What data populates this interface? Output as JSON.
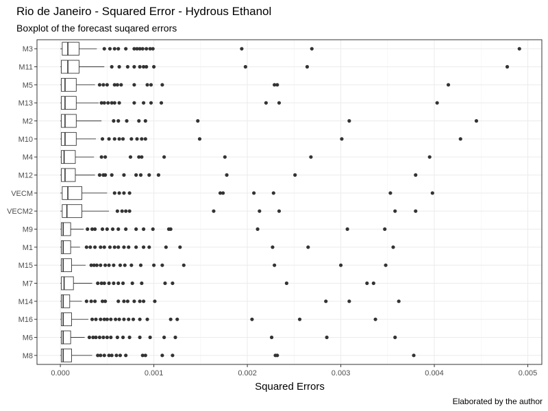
{
  "chart_data": {
    "type": "boxplot",
    "title": "Rio de Janeiro - Squared Error - Hydrous Ethanol",
    "subtitle": "Boxplot of the forecast suqared errors",
    "xlabel": "Squared Errors",
    "ylabel": "",
    "caption": "Elaborated by the author",
    "xlim": [
      -0.00025,
      0.00515
    ],
    "xticks": [
      0,
      0.001,
      0.002,
      0.003,
      0.004,
      0.005
    ],
    "xtick_labels": [
      "0.000",
      "0.001",
      "0.002",
      "0.003",
      "0.004",
      "0.005"
    ],
    "grid": true,
    "categories": [
      "M3",
      "M11",
      "M5",
      "M13",
      "M2",
      "M10",
      "M4",
      "M12",
      "VECM",
      "VECM2",
      "M9",
      "M1",
      "M15",
      "M7",
      "M14",
      "M16",
      "M6",
      "M8"
    ],
    "boxes": [
      {
        "name": "M3",
        "whisker_low": 0.0,
        "q1": 2e-05,
        "median": 8e-05,
        "q3": 0.0002,
        "whisker_high": 0.00039,
        "outliers": [
          0.00047,
          0.00053,
          0.00058,
          0.00062,
          0.0007,
          0.00079,
          0.00082,
          0.00085,
          0.00088,
          0.00092,
          0.00096,
          0.00099,
          0.00194,
          0.00269,
          0.00491
        ]
      },
      {
        "name": "M11",
        "whisker_low": 0.0,
        "q1": 1e-05,
        "median": 8e-05,
        "q3": 0.0002,
        "whisker_high": 0.00047,
        "outliers": [
          0.00055,
          0.00063,
          0.00072,
          0.00079,
          0.00085,
          0.00089,
          0.00092,
          0.001,
          0.00198,
          0.00264,
          0.00478
        ]
      },
      {
        "name": "M5",
        "whisker_low": 0.0,
        "q1": 1e-05,
        "median": 5e-05,
        "q3": 0.00017,
        "whisker_high": 0.00037,
        "outliers": [
          0.00042,
          0.00046,
          0.0005,
          0.00058,
          0.00061,
          0.00065,
          0.00079,
          0.00093,
          0.00097,
          0.00109,
          0.00229,
          0.00232,
          0.00415
        ]
      },
      {
        "name": "M13",
        "whisker_low": 0.0,
        "q1": 1e-05,
        "median": 5e-05,
        "q3": 0.00017,
        "whisker_high": 0.00041,
        "outliers": [
          0.00044,
          0.00047,
          0.00051,
          0.00055,
          0.00058,
          0.00063,
          0.00079,
          0.00089,
          0.00097,
          0.00108,
          0.0022,
          0.00234,
          0.00403
        ]
      },
      {
        "name": "M2",
        "whisker_low": 0.0,
        "q1": 1e-05,
        "median": 5e-05,
        "q3": 0.00017,
        "whisker_high": 0.00044,
        "outliers": [
          0.00057,
          0.00062,
          0.00071,
          0.00084,
          0.00091,
          0.00147,
          0.00309,
          0.00445
        ]
      },
      {
        "name": "M10",
        "whisker_low": 0.0,
        "q1": 1e-05,
        "median": 5e-05,
        "q3": 0.00017,
        "whisker_high": 0.00038,
        "outliers": [
          0.00045,
          0.00052,
          0.00058,
          0.00063,
          0.00067,
          0.00076,
          0.00082,
          0.00087,
          0.00091,
          0.00149,
          0.00301,
          0.00428
        ]
      },
      {
        "name": "M4",
        "whisker_low": 0.0,
        "q1": 1e-05,
        "median": 4e-05,
        "q3": 0.00016,
        "whisker_high": 0.00036,
        "outliers": [
          0.00044,
          0.00048,
          0.00075,
          0.00084,
          0.00087,
          0.00111,
          0.00176,
          0.00268,
          0.00395
        ]
      },
      {
        "name": "M12",
        "whisker_low": 0.0,
        "q1": 1e-05,
        "median": 5e-05,
        "q3": 0.00016,
        "whisker_high": 0.00037,
        "outliers": [
          0.00042,
          0.00046,
          0.00048,
          0.00055,
          0.00068,
          0.00081,
          0.00086,
          0.00095,
          0.00105,
          0.00178,
          0.00251,
          0.0038
        ]
      },
      {
        "name": "VECM",
        "whisker_low": 0.0,
        "q1": 2e-05,
        "median": 8e-05,
        "q3": 0.00023,
        "whisker_high": 0.0005,
        "outliers": [
          0.00058,
          0.00063,
          0.00068,
          0.00074,
          0.00171,
          0.00174,
          0.00207,
          0.00228,
          0.00353,
          0.00398
        ]
      },
      {
        "name": "VECM2",
        "whisker_low": 0.0,
        "q1": 2e-05,
        "median": 7e-05,
        "q3": 0.00023,
        "whisker_high": 0.00052,
        "outliers": [
          0.00061,
          0.00066,
          0.0007,
          0.00074,
          0.00164,
          0.00213,
          0.00234,
          0.00358,
          0.0038
        ]
      },
      {
        "name": "M9",
        "whisker_low": 0.0,
        "q1": 1e-05,
        "median": 3e-05,
        "q3": 0.00011,
        "whisker_high": 0.00025,
        "outliers": [
          0.00029,
          0.00034,
          0.00037,
          0.00045,
          0.0005,
          0.00056,
          0.00062,
          0.0007,
          0.00081,
          0.00089,
          0.00099,
          0.00116,
          0.00118,
          0.00211,
          0.00307,
          0.00347
        ]
      },
      {
        "name": "M1",
        "whisker_low": 0.0,
        "q1": 1e-05,
        "median": 3e-05,
        "q3": 0.00011,
        "whisker_high": 0.00021,
        "outliers": [
          0.00028,
          0.00032,
          0.00037,
          0.00043,
          0.00047,
          0.00053,
          0.00058,
          0.00062,
          0.00068,
          0.00073,
          0.00081,
          0.00089,
          0.00095,
          0.00113,
          0.00128,
          0.00227,
          0.00265,
          0.00356
        ]
      },
      {
        "name": "M15",
        "whisker_low": 0.0,
        "q1": 1e-05,
        "median": 3e-05,
        "q3": 0.00012,
        "whisker_high": 0.00027,
        "outliers": [
          0.00033,
          0.00036,
          0.00039,
          0.00043,
          0.00048,
          0.00052,
          0.00057,
          0.00064,
          0.00069,
          0.00076,
          0.00086,
          0.001,
          0.00109,
          0.00132,
          0.00229,
          0.003,
          0.00348
        ]
      },
      {
        "name": "M7",
        "whisker_low": 0.0,
        "q1": 1e-05,
        "median": 4e-05,
        "q3": 0.00014,
        "whisker_high": 0.00034,
        "outliers": [
          0.0004,
          0.00044,
          0.00047,
          0.00052,
          0.00057,
          0.00062,
          0.00067,
          0.00077,
          0.00087,
          0.00112,
          0.0012,
          0.00242,
          0.00328,
          0.00335
        ]
      },
      {
        "name": "M14",
        "whisker_low": 0.0,
        "q1": 1e-05,
        "median": 3e-05,
        "q3": 0.0001,
        "whisker_high": 0.00023,
        "outliers": [
          0.00028,
          0.00033,
          0.00037,
          0.00045,
          0.00048,
          0.00062,
          0.00068,
          0.00072,
          0.00079,
          0.00085,
          0.00089,
          0.00101,
          0.00284,
          0.00309,
          0.00362
        ]
      },
      {
        "name": "M16",
        "whisker_low": 0.0,
        "q1": 1e-05,
        "median": 3e-05,
        "q3": 0.00012,
        "whisker_high": 0.0003,
        "outliers": [
          0.00034,
          0.00038,
          0.00043,
          0.00047,
          0.0005,
          0.00054,
          0.00059,
          0.00063,
          0.00068,
          0.00073,
          0.00078,
          0.00085,
          0.00093,
          0.00118,
          0.00125,
          0.00205,
          0.00256,
          0.00337
        ]
      },
      {
        "name": "M6",
        "whisker_low": 0.0,
        "q1": 1e-05,
        "median": 3e-05,
        "q3": 0.00011,
        "whisker_high": 0.00026,
        "outliers": [
          0.00031,
          0.00035,
          0.00038,
          0.00042,
          0.00046,
          0.0005,
          0.00054,
          0.00061,
          0.00067,
          0.00074,
          0.00085,
          0.00096,
          0.00111,
          0.00123,
          0.00226,
          0.00285,
          0.00358
        ]
      },
      {
        "name": "M8",
        "whisker_low": 0.0,
        "q1": 1e-05,
        "median": 3e-05,
        "q3": 0.00012,
        "whisker_high": 0.00034,
        "outliers": [
          0.0004,
          0.00043,
          0.00047,
          0.00052,
          0.00055,
          0.0006,
          0.00064,
          0.0007,
          0.00088,
          0.00091,
          0.00109,
          0.0012,
          0.0023,
          0.00232,
          0.00378
        ]
      }
    ]
  }
}
